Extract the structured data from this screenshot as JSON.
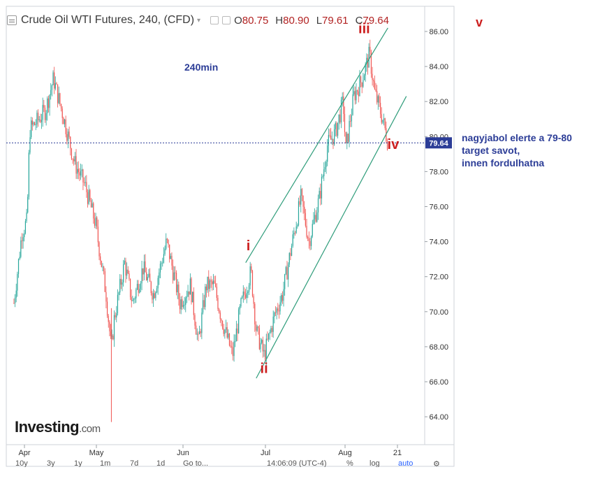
{
  "header": {
    "title": "Crude Oil WTI Futures, 240, (CFD)",
    "open": "80.75",
    "high": "80.90",
    "low": "79.61",
    "close": "79.64",
    "open_label": "O",
    "high_label": "H",
    "low_label": "L",
    "close_label": "C"
  },
  "brand": {
    "main": "Investing",
    "suffix": ".com"
  },
  "bottom_bar": {
    "ranges": [
      "10y",
      "3y",
      "1y",
      "1m",
      "7d",
      "1d"
    ],
    "goto": "Go to...",
    "time": "14:06:09 (UTC-4)",
    "percent": "%",
    "log": "log",
    "auto": "auto"
  },
  "side_note": {
    "lines": [
      "nagyjabol elerte a 79-80",
      "target savot,",
      "innen fordulhatna"
    ],
    "color": "#2c3d97"
  },
  "corner_label": "v",
  "colors": {
    "up": "#26a69a",
    "down": "#ef5350",
    "channel": "#2e9c7a",
    "wave_label": "#cc1f1f",
    "price_line": "#2c3d97",
    "annotation": "#2c3d97"
  },
  "chart_data": {
    "type": "candlestick",
    "annotation": "240min",
    "y_ticks": [
      "86.00",
      "84.00",
      "82.00",
      "80.00",
      "78.00",
      "76.00",
      "74.00",
      "72.00",
      "70.00",
      "68.00",
      "66.00",
      "64.00"
    ],
    "x_ticks": [
      "Apr",
      "May",
      "Jun",
      "Jul",
      "Aug",
      "21"
    ],
    "ylim": [
      62.8,
      87.5
    ],
    "last_price": "79.64",
    "close_path": [
      {
        "date": "Mar 28",
        "close": 70.5
      },
      {
        "date": "Mar 31",
        "close": 74.5
      },
      {
        "date": "Apr 2",
        "close": 75.2
      },
      {
        "date": "Apr 3",
        "close": 80.4
      },
      {
        "date": "Apr 6",
        "close": 80.9
      },
      {
        "date": "Apr 9",
        "close": 81.5
      },
      {
        "date": "Apr 12",
        "close": 83.3
      },
      {
        "date": "Apr 16",
        "close": 81.0
      },
      {
        "date": "Apr 20",
        "close": 78.5
      },
      {
        "date": "Apr 24",
        "close": 77.2
      },
      {
        "date": "Apr 28",
        "close": 75.0
      },
      {
        "date": "May 2",
        "close": 71.0
      },
      {
        "date": "May 4",
        "close": 67.8
      },
      {
        "date": "May 5",
        "close": 69.5
      },
      {
        "date": "May 9",
        "close": 72.8
      },
      {
        "date": "May 12",
        "close": 70.5
      },
      {
        "date": "May 16",
        "close": 72.5
      },
      {
        "date": "May 20",
        "close": 71.0
      },
      {
        "date": "May 25",
        "close": 74.0
      },
      {
        "date": "May 30",
        "close": 70.5
      },
      {
        "date": "Jun 3",
        "close": 71.5
      },
      {
        "date": "Jun 6",
        "close": 68.2
      },
      {
        "date": "Jun 9",
        "close": 71.5
      },
      {
        "date": "Jun 12",
        "close": 71.5
      },
      {
        "date": "Jun 15",
        "close": 69.5
      },
      {
        "date": "Jun 19",
        "close": 67.5
      },
      {
        "date": "Jun 22",
        "close": 70.2
      },
      {
        "date": "Jun 26",
        "close": 72.3
      },
      {
        "date": "Jun 28",
        "close": 68.9
      },
      {
        "date": "Jul 1",
        "close": 67.5
      },
      {
        "date": "Jul 5",
        "close": 69.8
      },
      {
        "date": "Jul 8",
        "close": 71.0
      },
      {
        "date": "Jul 12",
        "close": 74.2
      },
      {
        "date": "Jul 15",
        "close": 76.5
      },
      {
        "date": "Jul 18",
        "close": 74.0
      },
      {
        "date": "Jul 22",
        "close": 76.5
      },
      {
        "date": "Jul 25",
        "close": 79.5
      },
      {
        "date": "Jul 28",
        "close": 80.2
      },
      {
        "date": "Jul 31",
        "close": 82.0
      },
      {
        "date": "Aug 1",
        "close": 79.2
      },
      {
        "date": "Aug 4",
        "close": 82.3
      },
      {
        "date": "Aug 7",
        "close": 83.2
      },
      {
        "date": "Aug 10",
        "close": 84.7
      },
      {
        "date": "Aug 12",
        "close": 82.5
      },
      {
        "date": "Aug 15",
        "close": 81.0
      },
      {
        "date": "Aug 17",
        "close": 79.64
      }
    ],
    "wave_labels": [
      {
        "label": "i",
        "date": "Jun 25",
        "price": 73.5
      },
      {
        "label": "ii",
        "date": "Jul 1",
        "price": 66.5
      },
      {
        "label": "iii",
        "date": "Aug 8",
        "price": 85.9
      },
      {
        "label": "iv",
        "date": "Aug 19",
        "price": 79.3
      }
    ],
    "channel": {
      "upper": [
        {
          "date": "Jun 24",
          "price": 72.8
        },
        {
          "date": "Aug 17",
          "price": 86.2
        }
      ],
      "lower": [
        {
          "date": "Jun 28",
          "price": 66.2
        },
        {
          "date": "Aug 24",
          "price": 82.3
        }
      ]
    }
  }
}
